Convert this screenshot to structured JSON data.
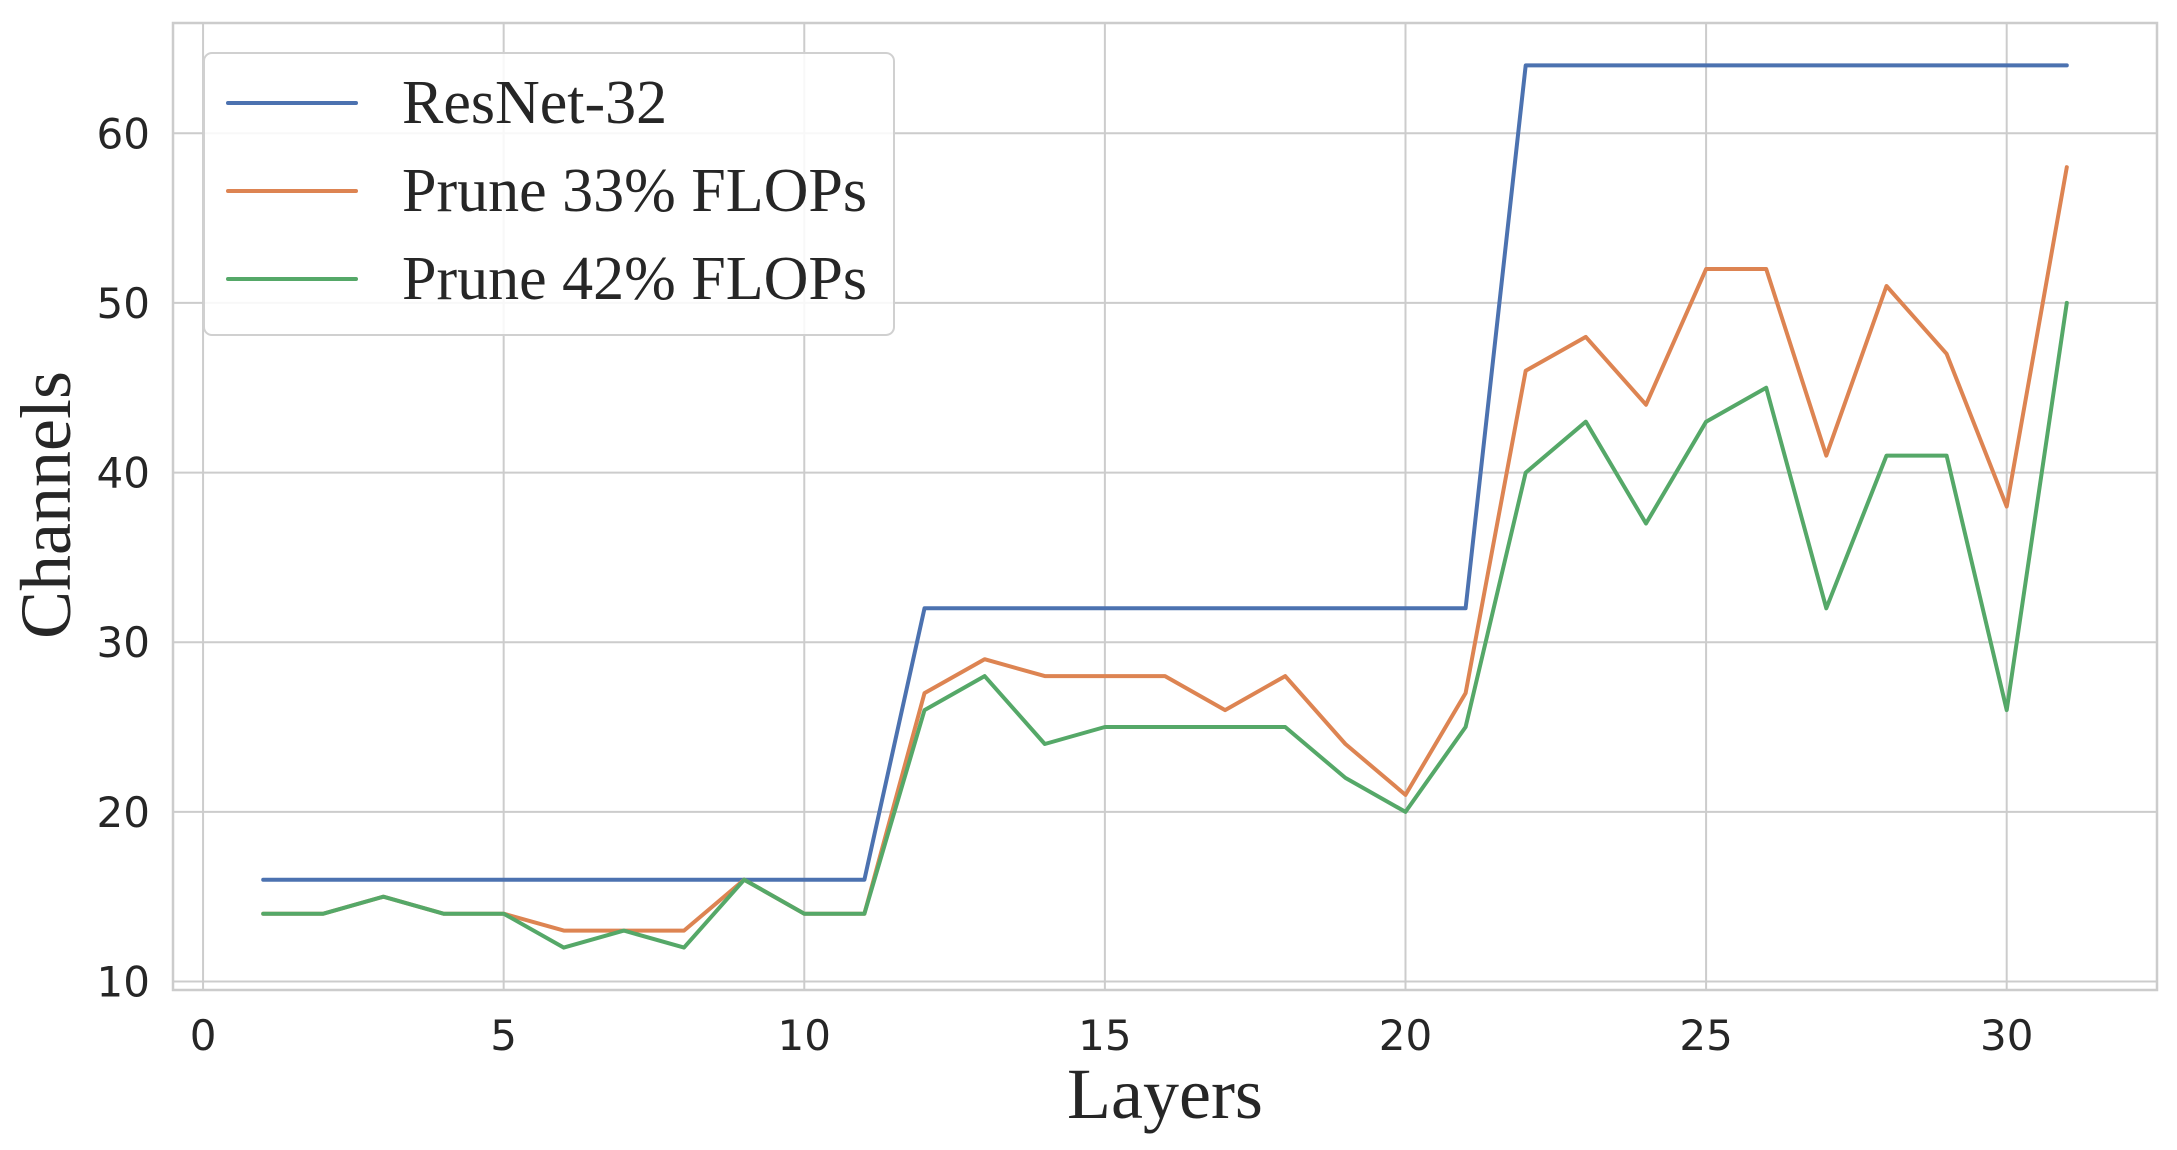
{
  "chart_data": {
    "type": "line",
    "title": "",
    "xlabel": "Layers",
    "ylabel": "Channels",
    "xlim": [
      -0.5,
      32.5
    ],
    "ylim": [
      9.5,
      66.5
    ],
    "xticks": [
      0,
      5,
      10,
      15,
      20,
      25,
      30
    ],
    "yticks": [
      10,
      20,
      30,
      40,
      50,
      60
    ],
    "grid": true,
    "legend_position": "top-left",
    "x": [
      1,
      2,
      3,
      4,
      5,
      6,
      7,
      8,
      9,
      10,
      11,
      12,
      13,
      14,
      15,
      16,
      17,
      18,
      19,
      20,
      21,
      22,
      23,
      24,
      25,
      26,
      27,
      28,
      29,
      30,
      31
    ],
    "series": [
      {
        "name": "ResNet-32",
        "color": "#4c72b0",
        "values": [
          16,
          16,
          16,
          16,
          16,
          16,
          16,
          16,
          16,
          16,
          16,
          32,
          32,
          32,
          32,
          32,
          32,
          32,
          32,
          32,
          32,
          64,
          64,
          64,
          64,
          64,
          64,
          64,
          64,
          64,
          64
        ]
      },
      {
        "name": "Prune 33% FLOPs",
        "color": "#dd8452",
        "values": [
          14,
          14,
          15,
          14,
          14,
          13,
          13,
          13,
          16,
          14,
          14,
          27,
          29,
          28,
          28,
          28,
          26,
          28,
          24,
          21,
          27,
          46,
          48,
          44,
          52,
          52,
          41,
          51,
          47,
          38,
          58
        ]
      },
      {
        "name": "Prune 42% FLOPs",
        "color": "#55a868",
        "values": [
          14,
          14,
          15,
          14,
          14,
          12,
          13,
          12,
          16,
          14,
          14,
          26,
          28,
          24,
          25,
          25,
          25,
          25,
          22,
          20,
          25,
          40,
          43,
          37,
          43,
          45,
          32,
          41,
          41,
          26,
          50
        ]
      }
    ]
  }
}
